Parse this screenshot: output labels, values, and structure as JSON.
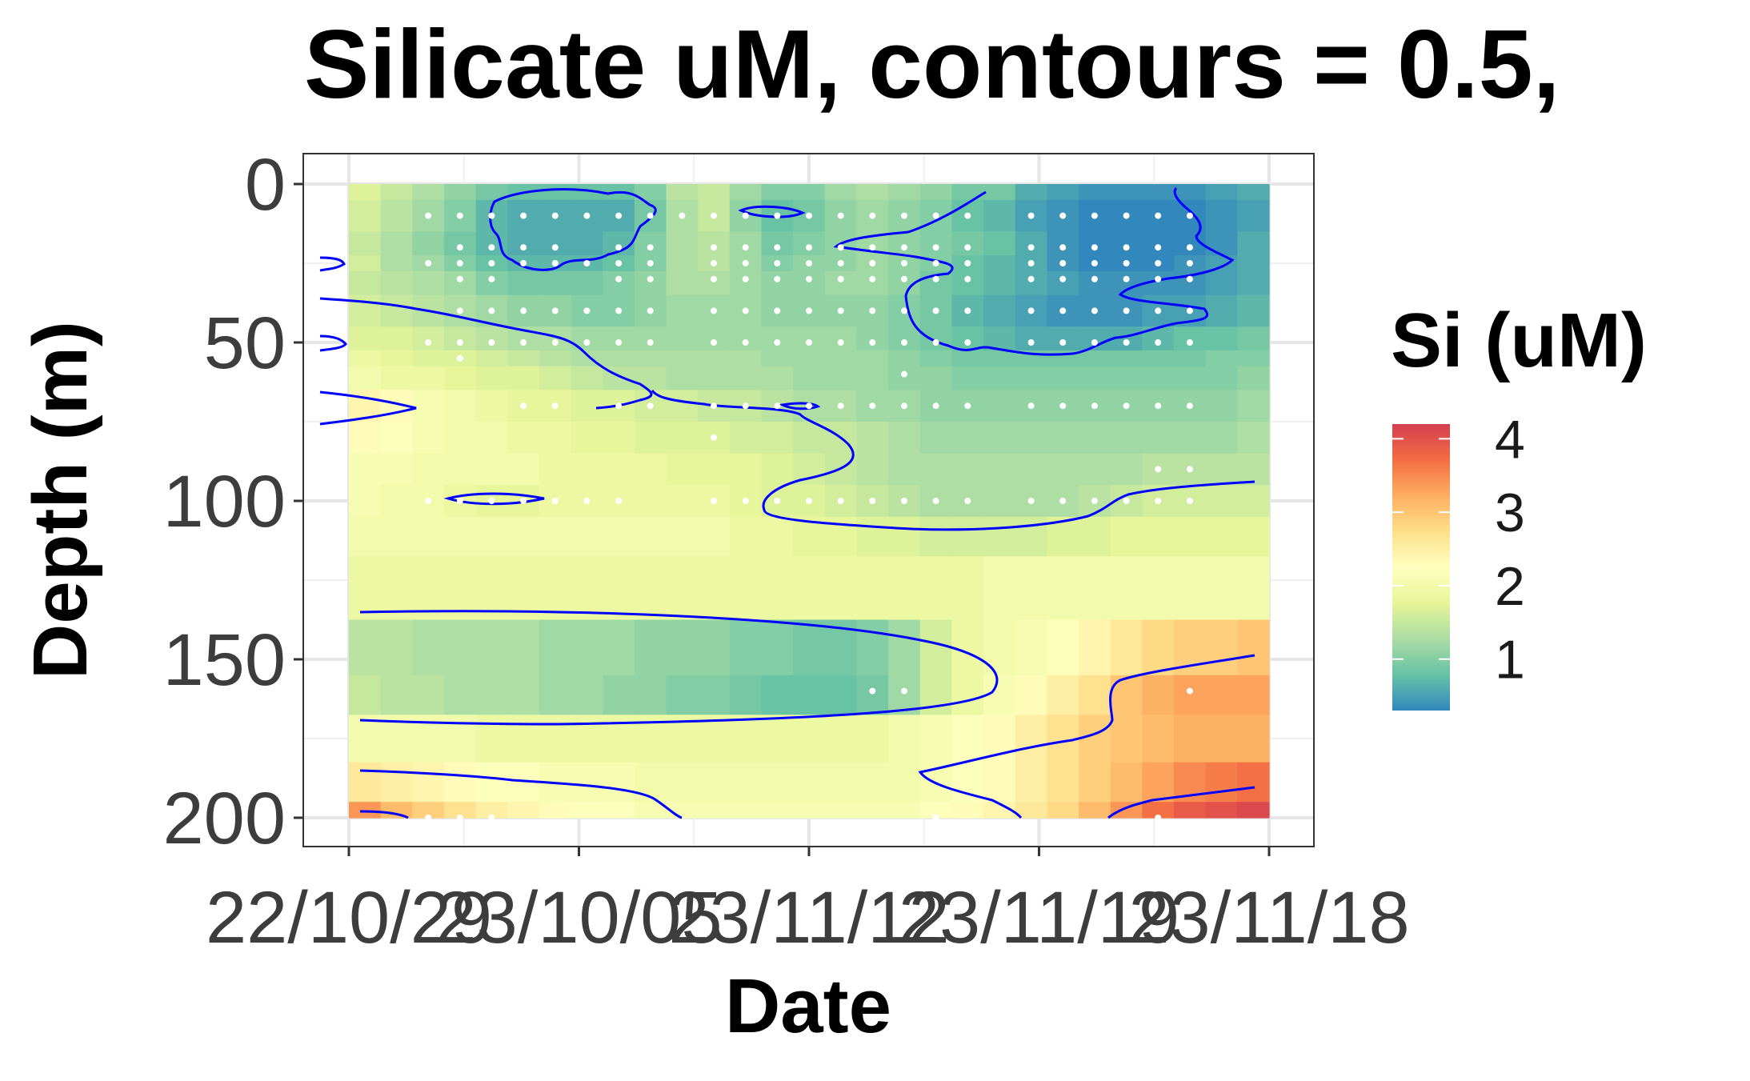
{
  "chart_data": {
    "type": "heatmap",
    "title": "Silicate uM, contours = 0.5,",
    "xlabel": "Date",
    "ylabel": "Depth (m)",
    "x_tick_labels": [
      "22/10/29",
      "23/10/05",
      "23/11/12",
      "23/11/19",
      "23/11/18"
    ],
    "y_tick_labels": [
      "0",
      "50",
      "100",
      "150",
      "200"
    ],
    "y_ticks": [
      0,
      50,
      100,
      150,
      200
    ],
    "ylim": [
      0,
      200
    ],
    "y_reversed": true,
    "grid": true,
    "legend": {
      "title": "Si (uM)",
      "position": "right",
      "ticks": [
        1,
        2,
        3,
        4
      ],
      "tick_labels": [
        "1",
        "2",
        "3",
        "4"
      ],
      "range": [
        0.3,
        4.2
      ],
      "colors": [
        "#3288bd",
        "#66c2a5",
        "#abdda4",
        "#e6f598",
        "#ffffbf",
        "#fee08b",
        "#fdae61",
        "#f46d43",
        "#d53e4f"
      ]
    },
    "contour_interval": 0.5,
    "contour_color": "#0000ff",
    "sample_point_color": "#ffffff",
    "x_cols": 29,
    "depth_levels": [
      0,
      10,
      20,
      25,
      30,
      40,
      50,
      55,
      60,
      70,
      80,
      90,
      100,
      110,
      125,
      150,
      160,
      175,
      190,
      200
    ],
    "field_rows": [
      [
        1.7,
        1.5,
        1.3,
        1.1,
        0.9,
        0.8,
        0.8,
        0.8,
        0.8,
        1.0,
        1.4,
        1.5,
        1.2,
        1.0,
        1.0,
        1.2,
        1.3,
        1.2,
        1.1,
        0.9,
        0.9,
        0.6,
        0.5,
        0.4,
        0.4,
        0.4,
        0.4,
        0.5,
        0.6
      ],
      [
        1.6,
        1.4,
        1.2,
        1.0,
        0.7,
        0.6,
        0.6,
        0.6,
        0.6,
        0.9,
        1.3,
        1.5,
        1.1,
        0.8,
        0.9,
        1.1,
        1.2,
        1.1,
        1.0,
        0.8,
        0.7,
        0.5,
        0.4,
        0.3,
        0.3,
        0.3,
        0.3,
        0.4,
        0.5
      ],
      [
        1.5,
        1.3,
        1.1,
        0.9,
        0.7,
        0.6,
        0.6,
        0.6,
        0.7,
        1.0,
        1.3,
        1.4,
        1.2,
        0.9,
        1.0,
        1.1,
        1.2,
        1.1,
        1.0,
        0.9,
        0.8,
        0.6,
        0.4,
        0.3,
        0.3,
        0.3,
        0.3,
        0.4,
        0.6
      ],
      [
        1.6,
        1.3,
        1.2,
        1.0,
        0.8,
        0.7,
        0.7,
        0.7,
        0.8,
        1.0,
        1.3,
        1.4,
        1.2,
        1.0,
        1.1,
        1.1,
        1.2,
        1.1,
        1.0,
        0.8,
        0.7,
        0.6,
        0.4,
        0.3,
        0.3,
        0.3,
        0.4,
        0.5,
        0.6
      ],
      [
        1.5,
        1.4,
        1.3,
        1.2,
        1.0,
        0.9,
        0.9,
        0.9,
        1.0,
        1.1,
        1.3,
        1.3,
        1.2,
        1.1,
        1.1,
        1.2,
        1.2,
        1.1,
        0.9,
        0.8,
        0.7,
        0.6,
        0.5,
        0.4,
        0.4,
        0.4,
        0.4,
        0.5,
        0.6
      ],
      [
        1.6,
        1.5,
        1.4,
        1.3,
        1.2,
        1.1,
        1.1,
        1.0,
        1.0,
        1.1,
        1.2,
        1.2,
        1.2,
        1.1,
        1.1,
        1.1,
        1.1,
        1.0,
        0.9,
        0.7,
        0.6,
        0.5,
        0.4,
        0.4,
        0.4,
        0.5,
        0.5,
        0.6,
        0.7
      ],
      [
        1.7,
        1.7,
        1.6,
        1.5,
        1.4,
        1.3,
        1.3,
        1.2,
        1.2,
        1.2,
        1.2,
        1.2,
        1.2,
        1.2,
        1.2,
        1.2,
        1.1,
        1.0,
        0.9,
        0.8,
        0.7,
        0.6,
        0.6,
        0.6,
        0.6,
        0.7,
        0.8,
        0.8,
        0.9
      ],
      [
        1.9,
        1.8,
        1.7,
        1.7,
        1.6,
        1.5,
        1.4,
        1.3,
        1.3,
        1.3,
        1.3,
        1.3,
        1.3,
        1.2,
        1.2,
        1.2,
        1.2,
        1.1,
        1.0,
        0.9,
        0.9,
        0.9,
        0.9,
        0.9,
        0.9,
        0.9,
        0.9,
        1.0,
        1.0
      ],
      [
        2.0,
        1.9,
        1.9,
        1.8,
        1.7,
        1.7,
        1.6,
        1.5,
        1.4,
        1.4,
        1.3,
        1.3,
        1.3,
        1.3,
        1.2,
        1.2,
        1.2,
        1.1,
        1.1,
        1.0,
        1.0,
        1.0,
        1.0,
        1.0,
        1.0,
        1.0,
        1.0,
        1.0,
        1.1
      ],
      [
        2.4,
        2.3,
        2.1,
        2.0,
        1.9,
        1.8,
        1.8,
        1.7,
        1.7,
        1.6,
        1.6,
        1.5,
        1.5,
        1.4,
        1.3,
        1.3,
        1.2,
        1.2,
        1.1,
        1.1,
        1.1,
        1.1,
        1.1,
        1.1,
        1.1,
        1.1,
        1.1,
        1.1,
        1.2
      ],
      [
        2.3,
        2.2,
        2.1,
        2.0,
        2.0,
        1.9,
        1.9,
        1.8,
        1.8,
        1.7,
        1.7,
        1.7,
        1.6,
        1.6,
        1.5,
        1.5,
        1.4,
        1.3,
        1.2,
        1.2,
        1.2,
        1.2,
        1.2,
        1.2,
        1.2,
        1.2,
        1.2,
        1.2,
        1.3
      ],
      [
        2.1,
        2.1,
        2.0,
        2.0,
        2.0,
        2.0,
        1.9,
        1.9,
        1.9,
        1.9,
        1.8,
        1.8,
        1.8,
        1.7,
        1.6,
        1.5,
        1.4,
        1.3,
        1.3,
        1.3,
        1.3,
        1.3,
        1.3,
        1.3,
        1.3,
        1.4,
        1.4,
        1.4,
        1.4
      ],
      [
        2.1,
        2.0,
        2.0,
        1.9,
        1.8,
        1.8,
        1.9,
        1.9,
        1.9,
        1.9,
        1.9,
        1.9,
        1.8,
        1.7,
        1.7,
        1.6,
        1.5,
        1.4,
        1.3,
        1.3,
        1.3,
        1.3,
        1.3,
        1.4,
        1.5,
        1.6,
        1.6,
        1.6,
        1.6
      ],
      [
        2.0,
        2.0,
        2.0,
        2.0,
        2.0,
        2.0,
        2.0,
        2.0,
        2.0,
        2.0,
        2.0,
        2.0,
        1.9,
        1.9,
        1.8,
        1.8,
        1.7,
        1.7,
        1.6,
        1.6,
        1.6,
        1.6,
        1.7,
        1.7,
        1.8,
        1.8,
        1.8,
        1.8,
        1.8
      ],
      [
        1.9,
        1.9,
        1.9,
        1.9,
        1.9,
        1.9,
        1.9,
        1.9,
        1.9,
        1.9,
        1.9,
        1.9,
        1.9,
        1.9,
        1.9,
        1.9,
        1.9,
        1.9,
        1.9,
        1.9,
        2.0,
        2.0,
        2.0,
        2.0,
        2.0,
        2.0,
        2.0,
        2.0,
        2.0
      ],
      [
        1.4,
        1.4,
        1.3,
        1.3,
        1.3,
        1.3,
        1.2,
        1.2,
        1.2,
        1.1,
        1.1,
        1.1,
        1.0,
        1.0,
        0.9,
        0.9,
        1.0,
        1.2,
        1.6,
        1.9,
        2.0,
        2.1,
        2.2,
        2.4,
        2.6,
        2.8,
        2.9,
        2.9,
        3.0
      ],
      [
        1.5,
        1.4,
        1.4,
        1.3,
        1.3,
        1.3,
        1.2,
        1.2,
        1.1,
        1.1,
        1.0,
        1.0,
        0.9,
        0.8,
        0.8,
        0.8,
        0.9,
        1.2,
        1.6,
        1.9,
        2.1,
        2.3,
        2.5,
        2.7,
        3.0,
        3.2,
        3.3,
        3.3,
        3.3
      ],
      [
        2.0,
        2.0,
        2.0,
        2.0,
        1.9,
        1.9,
        1.9,
        1.9,
        1.9,
        1.9,
        1.9,
        1.9,
        1.9,
        1.9,
        1.9,
        1.9,
        1.9,
        2.0,
        2.1,
        2.2,
        2.3,
        2.5,
        2.7,
        2.9,
        3.0,
        3.1,
        3.2,
        3.2,
        3.2
      ],
      [
        2.6,
        2.5,
        2.4,
        2.3,
        2.2,
        2.2,
        2.1,
        2.1,
        2.1,
        2.0,
        2.0,
        2.0,
        2.0,
        2.0,
        2.0,
        2.0,
        2.0,
        2.0,
        2.1,
        2.2,
        2.3,
        2.5,
        2.7,
        2.9,
        3.1,
        3.3,
        3.5,
        3.6,
        3.7
      ],
      [
        3.4,
        3.1,
        2.9,
        2.7,
        2.5,
        2.4,
        2.3,
        2.2,
        2.2,
        2.1,
        2.1,
        2.1,
        2.1,
        2.1,
        2.1,
        2.1,
        2.1,
        2.1,
        2.2,
        2.3,
        2.4,
        2.6,
        2.8,
        3.1,
        3.4,
        3.7,
        3.9,
        4.0,
        4.1
      ]
    ],
    "sample_points": [
      {
        "col": 2,
        "depth": 10
      },
      {
        "col": 3,
        "depth": 10
      },
      {
        "col": 4,
        "depth": 10
      },
      {
        "col": 5,
        "depth": 10
      },
      {
        "col": 6,
        "depth": 10
      },
      {
        "col": 7,
        "depth": 10
      },
      {
        "col": 8,
        "depth": 10
      },
      {
        "col": 9,
        "depth": 10
      },
      {
        "col": 10,
        "depth": 10
      },
      {
        "col": 11,
        "depth": 10
      },
      {
        "col": 12,
        "depth": 10
      },
      {
        "col": 13,
        "depth": 10
      },
      {
        "col": 14,
        "depth": 10
      },
      {
        "col": 15,
        "depth": 10
      },
      {
        "col": 16,
        "depth": 10
      },
      {
        "col": 17,
        "depth": 10
      },
      {
        "col": 18,
        "depth": 10
      },
      {
        "col": 19,
        "depth": 10
      },
      {
        "col": 21,
        "depth": 10
      },
      {
        "col": 22,
        "depth": 10
      },
      {
        "col": 23,
        "depth": 10
      },
      {
        "col": 24,
        "depth": 10
      },
      {
        "col": 25,
        "depth": 10
      },
      {
        "col": 26,
        "depth": 10
      },
      {
        "col": 3,
        "depth": 20
      },
      {
        "col": 4,
        "depth": 20
      },
      {
        "col": 5,
        "depth": 20
      },
      {
        "col": 6,
        "depth": 20
      },
      {
        "col": 8,
        "depth": 20
      },
      {
        "col": 9,
        "depth": 20
      },
      {
        "col": 11,
        "depth": 20
      },
      {
        "col": 12,
        "depth": 20
      },
      {
        "col": 13,
        "depth": 20
      },
      {
        "col": 14,
        "depth": 20
      },
      {
        "col": 15,
        "depth": 20
      },
      {
        "col": 16,
        "depth": 20
      },
      {
        "col": 17,
        "depth": 20
      },
      {
        "col": 18,
        "depth": 20
      },
      {
        "col": 19,
        "depth": 20
      },
      {
        "col": 21,
        "depth": 20
      },
      {
        "col": 22,
        "depth": 20
      },
      {
        "col": 23,
        "depth": 20
      },
      {
        "col": 24,
        "depth": 20
      },
      {
        "col": 25,
        "depth": 20
      },
      {
        "col": 26,
        "depth": 20
      },
      {
        "col": 2,
        "depth": 25
      },
      {
        "col": 3,
        "depth": 25
      },
      {
        "col": 4,
        "depth": 25
      },
      {
        "col": 5,
        "depth": 25
      },
      {
        "col": 6,
        "depth": 25
      },
      {
        "col": 7,
        "depth": 25
      },
      {
        "col": 8,
        "depth": 25
      },
      {
        "col": 9,
        "depth": 25
      },
      {
        "col": 11,
        "depth": 25
      },
      {
        "col": 12,
        "depth": 25
      },
      {
        "col": 13,
        "depth": 25
      },
      {
        "col": 14,
        "depth": 25
      },
      {
        "col": 15,
        "depth": 25
      },
      {
        "col": 16,
        "depth": 25
      },
      {
        "col": 17,
        "depth": 25
      },
      {
        "col": 18,
        "depth": 25
      },
      {
        "col": 19,
        "depth": 25
      },
      {
        "col": 21,
        "depth": 25
      },
      {
        "col": 22,
        "depth": 25
      },
      {
        "col": 23,
        "depth": 25
      },
      {
        "col": 24,
        "depth": 25
      },
      {
        "col": 25,
        "depth": 25
      },
      {
        "col": 26,
        "depth": 25
      },
      {
        "col": 3,
        "depth": 30
      },
      {
        "col": 4,
        "depth": 30
      },
      {
        "col": 8,
        "depth": 30
      },
      {
        "col": 9,
        "depth": 30
      },
      {
        "col": 11,
        "depth": 30
      },
      {
        "col": 12,
        "depth": 30
      },
      {
        "col": 13,
        "depth": 30
      },
      {
        "col": 14,
        "depth": 30
      },
      {
        "col": 15,
        "depth": 30
      },
      {
        "col": 16,
        "depth": 30
      },
      {
        "col": 17,
        "depth": 30
      },
      {
        "col": 18,
        "depth": 30
      },
      {
        "col": 19,
        "depth": 30
      },
      {
        "col": 21,
        "depth": 30
      },
      {
        "col": 22,
        "depth": 30
      },
      {
        "col": 23,
        "depth": 30
      },
      {
        "col": 24,
        "depth": 30
      },
      {
        "col": 25,
        "depth": 30
      },
      {
        "col": 26,
        "depth": 30
      },
      {
        "col": 3,
        "depth": 40
      },
      {
        "col": 4,
        "depth": 40
      },
      {
        "col": 5,
        "depth": 40
      },
      {
        "col": 6,
        "depth": 40
      },
      {
        "col": 7,
        "depth": 40
      },
      {
        "col": 8,
        "depth": 40
      },
      {
        "col": 9,
        "depth": 40
      },
      {
        "col": 11,
        "depth": 40
      },
      {
        "col": 12,
        "depth": 40
      },
      {
        "col": 13,
        "depth": 40
      },
      {
        "col": 14,
        "depth": 40
      },
      {
        "col": 15,
        "depth": 40
      },
      {
        "col": 16,
        "depth": 40
      },
      {
        "col": 17,
        "depth": 40
      },
      {
        "col": 18,
        "depth": 40
      },
      {
        "col": 19,
        "depth": 40
      },
      {
        "col": 21,
        "depth": 40
      },
      {
        "col": 22,
        "depth": 40
      },
      {
        "col": 23,
        "depth": 40
      },
      {
        "col": 24,
        "depth": 40
      },
      {
        "col": 25,
        "depth": 40
      },
      {
        "col": 26,
        "depth": 40
      },
      {
        "col": 2,
        "depth": 50
      },
      {
        "col": 3,
        "depth": 50
      },
      {
        "col": 4,
        "depth": 50
      },
      {
        "col": 5,
        "depth": 50
      },
      {
        "col": 6,
        "depth": 50
      },
      {
        "col": 7,
        "depth": 50
      },
      {
        "col": 8,
        "depth": 50
      },
      {
        "col": 9,
        "depth": 50
      },
      {
        "col": 11,
        "depth": 50
      },
      {
        "col": 12,
        "depth": 50
      },
      {
        "col": 13,
        "depth": 50
      },
      {
        "col": 14,
        "depth": 50
      },
      {
        "col": 15,
        "depth": 50
      },
      {
        "col": 16,
        "depth": 50
      },
      {
        "col": 17,
        "depth": 50
      },
      {
        "col": 18,
        "depth": 50
      },
      {
        "col": 19,
        "depth": 50
      },
      {
        "col": 21,
        "depth": 50
      },
      {
        "col": 22,
        "depth": 50
      },
      {
        "col": 23,
        "depth": 50
      },
      {
        "col": 24,
        "depth": 50
      },
      {
        "col": 25,
        "depth": 50
      },
      {
        "col": 26,
        "depth": 50
      },
      {
        "col": 3,
        "depth": 55
      },
      {
        "col": 17,
        "depth": 60
      },
      {
        "col": 5,
        "depth": 70
      },
      {
        "col": 6,
        "depth": 70
      },
      {
        "col": 8,
        "depth": 70
      },
      {
        "col": 9,
        "depth": 70
      },
      {
        "col": 11,
        "depth": 70
      },
      {
        "col": 12,
        "depth": 70
      },
      {
        "col": 13,
        "depth": 70
      },
      {
        "col": 14,
        "depth": 70
      },
      {
        "col": 15,
        "depth": 70
      },
      {
        "col": 16,
        "depth": 70
      },
      {
        "col": 17,
        "depth": 70
      },
      {
        "col": 18,
        "depth": 70
      },
      {
        "col": 19,
        "depth": 70
      },
      {
        "col": 21,
        "depth": 70
      },
      {
        "col": 22,
        "depth": 70
      },
      {
        "col": 23,
        "depth": 70
      },
      {
        "col": 24,
        "depth": 70
      },
      {
        "col": 25,
        "depth": 70
      },
      {
        "col": 26,
        "depth": 70
      },
      {
        "col": 11,
        "depth": 80
      },
      {
        "col": 25,
        "depth": 90
      },
      {
        "col": 26,
        "depth": 90
      },
      {
        "col": 2,
        "depth": 100
      },
      {
        "col": 3,
        "depth": 100
      },
      {
        "col": 4,
        "depth": 100
      },
      {
        "col": 5,
        "depth": 100
      },
      {
        "col": 6,
        "depth": 100
      },
      {
        "col": 7,
        "depth": 100
      },
      {
        "col": 8,
        "depth": 100
      },
      {
        "col": 11,
        "depth": 100
      },
      {
        "col": 12,
        "depth": 100
      },
      {
        "col": 13,
        "depth": 100
      },
      {
        "col": 14,
        "depth": 100
      },
      {
        "col": 15,
        "depth": 100
      },
      {
        "col": 16,
        "depth": 100
      },
      {
        "col": 17,
        "depth": 100
      },
      {
        "col": 18,
        "depth": 100
      },
      {
        "col": 19,
        "depth": 100
      },
      {
        "col": 21,
        "depth": 100
      },
      {
        "col": 22,
        "depth": 100
      },
      {
        "col": 23,
        "depth": 100
      },
      {
        "col": 24,
        "depth": 100
      },
      {
        "col": 25,
        "depth": 100
      },
      {
        "col": 26,
        "depth": 100
      },
      {
        "col": 16,
        "depth": 160
      },
      {
        "col": 17,
        "depth": 160
      },
      {
        "col": 26,
        "depth": 160
      },
      {
        "col": 2,
        "depth": 200
      },
      {
        "col": 3,
        "depth": 200
      },
      {
        "col": 4,
        "depth": 200
      },
      {
        "col": 18,
        "depth": 200
      },
      {
        "col": 25,
        "depth": 200
      }
    ]
  }
}
